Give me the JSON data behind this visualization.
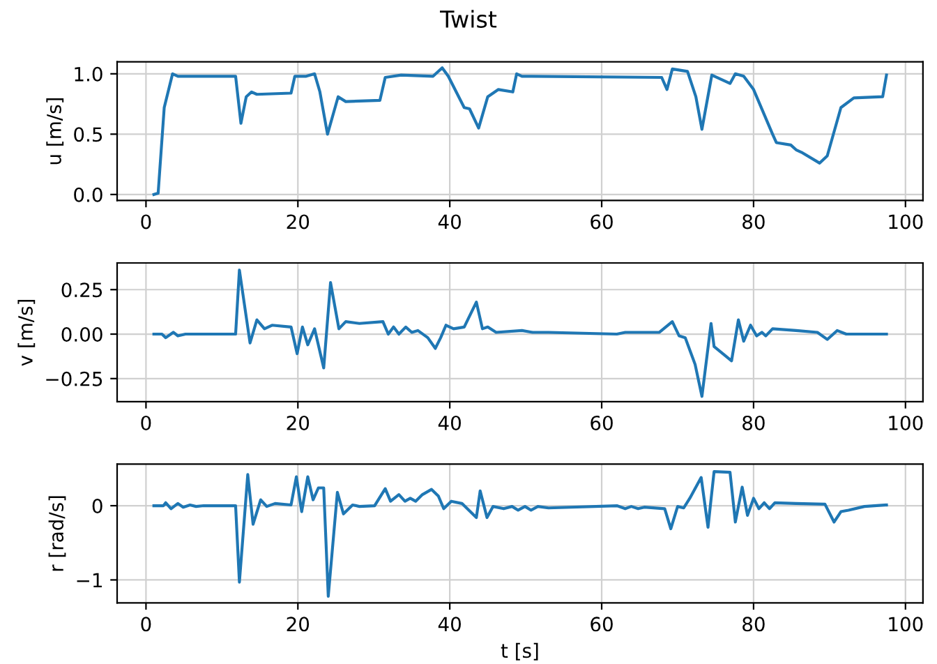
{
  "chart_data": [
    {
      "type": "line",
      "title": "Twist",
      "ylabel": "u [m/s]",
      "grid": true,
      "xlim": [
        -3.8,
        102.3
      ],
      "xticks": [
        0,
        20,
        40,
        60,
        80,
        100
      ],
      "ylim": [
        -0.05,
        1.1
      ],
      "yticks": [
        {
          "value": 0,
          "label": "0.0"
        },
        {
          "value": 0.5,
          "label": "0.5"
        },
        {
          "value": 1,
          "label": "1.0"
        }
      ],
      "series": [
        {
          "color": "#1f77b4",
          "x": [
            1.04,
            1.6,
            2.4,
            3.5,
            4.2,
            11.8,
            12.5,
            13.2,
            13.9,
            14.6,
            19.1,
            19.6,
            21.1,
            22.2,
            22.9,
            23.9,
            25.3,
            26.3,
            30.8,
            31.5,
            33.6,
            37.8,
            39.0,
            39.8,
            41.9,
            42.6,
            43.8,
            45.0,
            46.4,
            48.3,
            48.8,
            49.5,
            67.9,
            68.6,
            69.3,
            71.3,
            72.4,
            73.2,
            74.5,
            76.9,
            77.6,
            78.7,
            80.0,
            82.5,
            83.0,
            84.9,
            85.6,
            86.3,
            88.7,
            89.7,
            91.5,
            93.2,
            97.0,
            97.5
          ],
          "values": [
            0,
            0.01,
            0.72,
            1.0,
            0.98,
            0.98,
            0.59,
            0.81,
            0.85,
            0.83,
            0.84,
            0.98,
            0.98,
            1.0,
            0.85,
            0.5,
            0.81,
            0.77,
            0.78,
            0.97,
            0.99,
            0.98,
            1.05,
            0.98,
            0.72,
            0.71,
            0.55,
            0.81,
            0.87,
            0.85,
            1.0,
            0.98,
            0.97,
            0.87,
            1.04,
            1.02,
            0.81,
            0.54,
            0.99,
            0.92,
            1.0,
            0.98,
            0.87,
            0.5,
            0.43,
            0.41,
            0.37,
            0.35,
            0.26,
            0.32,
            0.72,
            0.8,
            0.81,
            0.99
          ]
        }
      ]
    },
    {
      "type": "line",
      "ylabel": "v [m/s]",
      "grid": true,
      "xlim": [
        -3.8,
        102.3
      ],
      "xticks": [
        0,
        20,
        40,
        60,
        80,
        100
      ],
      "ylim": [
        -0.38,
        0.4
      ],
      "yticks": [
        {
          "value": -0.25,
          "label": "−0.25"
        },
        {
          "value": 0,
          "label": "0.00"
        },
        {
          "value": 0.25,
          "label": "0.25"
        }
      ],
      "series": [
        {
          "color": "#1f77b4",
          "x": [
            1.04,
            2.1,
            2.6,
            3.6,
            4.2,
            5.2,
            6.9,
            11.8,
            12.3,
            13.7,
            14.6,
            15.6,
            16.6,
            19.1,
            19.9,
            20.6,
            21.3,
            22.2,
            23.4,
            24.3,
            25.4,
            26.3,
            28.1,
            31.2,
            31.9,
            32.6,
            33.3,
            34.2,
            35.0,
            35.8,
            37.1,
            38.1,
            38.8,
            39.5,
            40.5,
            41.9,
            43.5,
            44.3,
            45.0,
            46.1,
            49.5,
            50.9,
            53.0,
            62.0,
            63.1,
            67.6,
            69.3,
            70.2,
            71.0,
            72.3,
            73.2,
            74.4,
            74.8,
            77.1,
            78.0,
            78.7,
            79.6,
            80.4,
            81.1,
            81.6,
            82.5,
            85.6,
            88.4,
            89.7,
            91.0,
            92.2,
            97.5
          ],
          "values": [
            0,
            0,
            -0.02,
            0.01,
            -0.01,
            0,
            0,
            0,
            0.36,
            -0.05,
            0.08,
            0.03,
            0.05,
            0.04,
            -0.11,
            0.04,
            -0.06,
            0.03,
            -0.19,
            0.29,
            0.03,
            0.07,
            0.06,
            0.07,
            0,
            0.04,
            0,
            0.04,
            0.01,
            0.02,
            -0.02,
            -0.08,
            -0.02,
            0.05,
            0.03,
            0.04,
            0.18,
            0.03,
            0.04,
            0.01,
            0.02,
            0.01,
            0.01,
            0,
            0.01,
            0.01,
            0.07,
            -0.01,
            -0.02,
            -0.17,
            -0.35,
            0.06,
            -0.07,
            -0.15,
            0.08,
            -0.04,
            0.05,
            -0.01,
            0.01,
            -0.01,
            0.03,
            0.02,
            0.01,
            -0.03,
            0.02,
            0,
            0
          ]
        }
      ]
    },
    {
      "type": "line",
      "ylabel": "r [rad/s]",
      "xlabel": "t [s]",
      "grid": true,
      "xlim": [
        -3.8,
        102.3
      ],
      "xticks": [
        0,
        20,
        40,
        60,
        80,
        100
      ],
      "ylim": [
        -1.31,
        0.56
      ],
      "yticks": [
        {
          "value": -1,
          "label": "−1"
        },
        0
      ],
      "series": [
        {
          "color": "#1f77b4",
          "x": [
            1.04,
            2.3,
            2.6,
            3.3,
            4.2,
            4.9,
            5.8,
            6.6,
            7.6,
            11.8,
            12.3,
            13.4,
            14.1,
            15.1,
            15.9,
            17.0,
            19.1,
            19.8,
            20.5,
            21.3,
            22.0,
            22.7,
            23.4,
            24.0,
            25.2,
            26.0,
            27.2,
            28.1,
            30.1,
            31.5,
            32.2,
            33.3,
            34.1,
            34.8,
            35.5,
            36.4,
            37.6,
            38.5,
            39.2,
            40.2,
            41.6,
            42.3,
            43.5,
            44.0,
            44.9,
            45.7,
            47.1,
            48.2,
            49.0,
            49.9,
            50.7,
            51.6,
            53.0,
            62.0,
            63.1,
            63.9,
            64.8,
            65.6,
            68.3,
            69.1,
            70.0,
            70.8,
            71.6,
            73.1,
            74.0,
            74.8,
            76.9,
            77.6,
            78.5,
            79.2,
            80.0,
            80.7,
            81.4,
            82.1,
            82.8,
            85.6,
            89.4,
            90.6,
            91.5,
            92.5,
            94.6,
            97.5
          ],
          "values": [
            0,
            0,
            0.04,
            -0.04,
            0.03,
            -0.02,
            0.01,
            -0.01,
            0,
            0,
            -1.03,
            0.42,
            -0.25,
            0.08,
            -0.01,
            0.03,
            0.01,
            0.39,
            -0.08,
            0.39,
            0.08,
            0.24,
            0.24,
            -1.22,
            0.18,
            -0.11,
            0.01,
            -0.01,
            0,
            0.23,
            0.06,
            0.15,
            0.06,
            0.1,
            0.06,
            0.15,
            0.22,
            0.13,
            -0.04,
            0.06,
            0.03,
            -0.04,
            -0.16,
            0.2,
            -0.16,
            -0.01,
            -0.04,
            -0.01,
            -0.06,
            -0.01,
            -0.06,
            -0.01,
            -0.03,
            0,
            -0.04,
            -0.01,
            -0.04,
            -0.02,
            -0.04,
            -0.31,
            -0.01,
            -0.03,
            0.1,
            0.38,
            -0.29,
            0.46,
            0.45,
            -0.22,
            0.25,
            -0.13,
            0.1,
            -0.04,
            0.04,
            -0.04,
            0.04,
            0.03,
            0.02,
            -0.22,
            -0.08,
            -0.06,
            -0.01,
            0.01
          ]
        }
      ]
    }
  ]
}
